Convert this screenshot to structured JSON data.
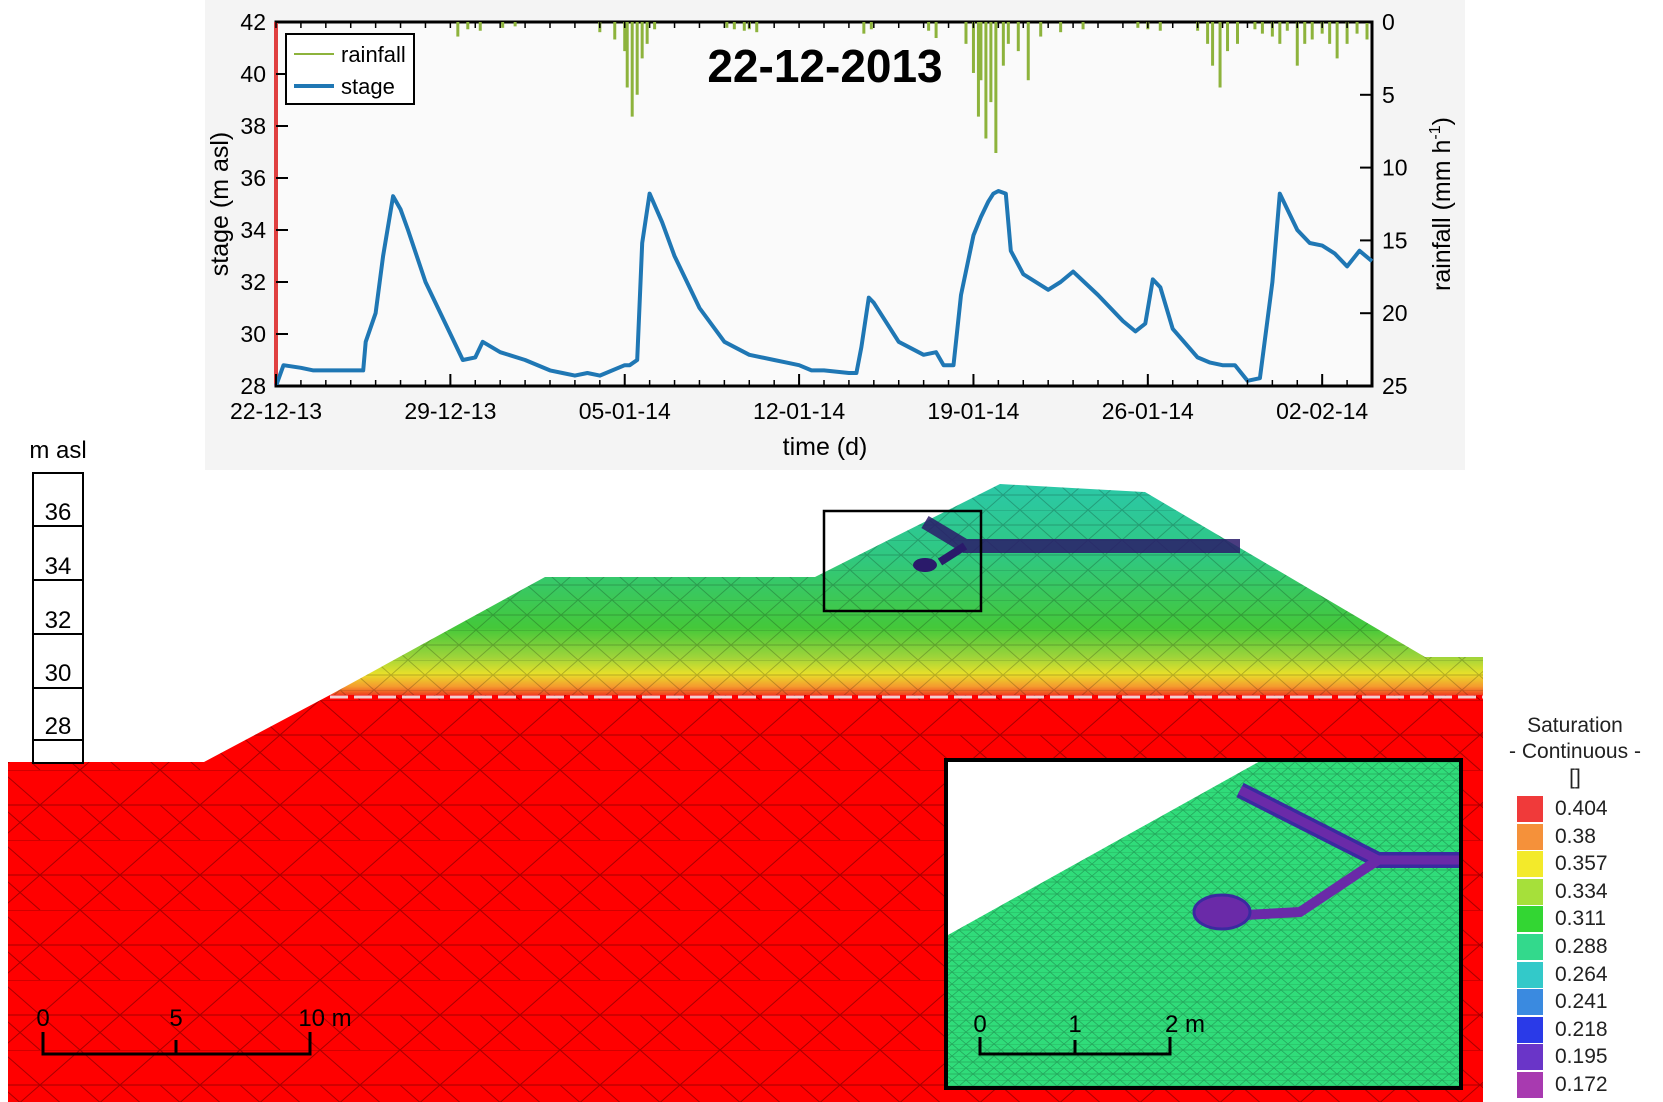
{
  "chart_data": [
    {
      "type": "line",
      "title": "22-12-2013",
      "xlabel": "time (d)",
      "ylabel": "stage (m asl)",
      "y2label": "rainfall (mm h-1)",
      "x_tick_labels": [
        "22-12-13",
        "29-12-13",
        "05-01-14",
        "12-01-14",
        "19-01-14",
        "26-01-14",
        "02-02-14"
      ],
      "x_tick_values": [
        0,
        7,
        14,
        21,
        28,
        35,
        42
      ],
      "xlim": [
        0,
        44
      ],
      "ylim": [
        28,
        42
      ],
      "y_ticks": [
        28,
        30,
        32,
        34,
        36,
        38,
        40,
        42
      ],
      "y2lim": [
        0,
        25
      ],
      "y2_ticks": [
        0,
        5,
        10,
        15,
        20,
        25
      ],
      "y2_inverted": true,
      "legend": {
        "position": "top-left",
        "entries": [
          "rainfall",
          "stage"
        ]
      },
      "colors": {
        "rainfall": "#8db33c",
        "stage": "#1f77b4"
      },
      "series": [
        {
          "name": "stage",
          "x": [
            0,
            0.3,
            1.0,
            1.5,
            2.0,
            3.0,
            3.5,
            3.6,
            4.0,
            4.3,
            4.7,
            5.0,
            5.3,
            6.0,
            7.0,
            7.5,
            8.0,
            8.3,
            9.0,
            10.0,
            11.0,
            11.5,
            12.0,
            12.5,
            13.0,
            14.0,
            14.2,
            14.5,
            14.7,
            15.0,
            15.5,
            16.0,
            17.0,
            18.0,
            19.0,
            20.0,
            20.5,
            21.0,
            21.5,
            22.0,
            23.0,
            23.3,
            23.5,
            23.8,
            24.0,
            25.0,
            26.0,
            26.5,
            26.8,
            27.2,
            27.5,
            28.0,
            28.3,
            28.6,
            28.8,
            29.0,
            29.3,
            29.5,
            30.0,
            31.0,
            31.5,
            32.0,
            33.0,
            34.0,
            34.5,
            34.9,
            35.2,
            35.5,
            36.0,
            37.0,
            37.5,
            38.0,
            38.5,
            39.0,
            39.5,
            40.0,
            40.3,
            40.6,
            41.0,
            41.5,
            42.0,
            42.5,
            43.0,
            43.5,
            44.0
          ],
          "values": [
            28.0,
            28.8,
            28.7,
            28.6,
            28.6,
            28.6,
            28.6,
            29.7,
            30.8,
            33.0,
            35.3,
            34.8,
            34.0,
            32.0,
            30.0,
            29.0,
            29.1,
            29.7,
            29.3,
            29.0,
            28.6,
            28.5,
            28.4,
            28.5,
            28.4,
            28.8,
            28.8,
            29.0,
            33.5,
            35.4,
            34.3,
            33.0,
            31.0,
            29.7,
            29.2,
            29.0,
            28.9,
            28.8,
            28.6,
            28.6,
            28.5,
            28.5,
            29.5,
            31.4,
            31.2,
            29.7,
            29.2,
            29.3,
            28.8,
            28.8,
            31.5,
            33.8,
            34.5,
            35.1,
            35.4,
            35.5,
            35.4,
            33.2,
            32.3,
            31.7,
            32.0,
            32.4,
            31.5,
            30.5,
            30.1,
            30.4,
            32.1,
            31.8,
            30.2,
            29.1,
            28.9,
            28.8,
            28.8,
            28.2,
            28.3,
            32.0,
            35.4,
            34.8,
            34.0,
            33.5,
            33.4,
            33.1,
            32.6,
            33.2,
            32.8
          ]
        },
        {
          "name": "rainfall",
          "x": [
            7.3,
            7.7,
            8.2,
            9.1,
            9.6,
            13.0,
            13.6,
            14.0,
            14.1,
            14.3,
            14.5,
            14.7,
            14.9,
            15.2,
            18.1,
            18.4,
            18.8,
            19.0,
            19.3,
            23.6,
            23.9,
            26.2,
            26.5,
            27.7,
            28.0,
            28.2,
            28.3,
            28.5,
            28.7,
            28.9,
            29.2,
            29.4,
            29.8,
            30.2,
            30.7,
            31.5,
            32.4,
            34.6,
            35.0,
            35.5,
            37.0,
            37.4,
            37.6,
            37.9,
            38.2,
            38.6,
            39.3,
            39.6,
            40.0,
            40.3,
            40.6,
            41.0,
            41.3,
            41.6,
            42.0,
            42.3,
            42.6,
            43.0,
            43.4,
            43.8
          ],
          "values": [
            1.0,
            0.5,
            0.6,
            0.4,
            0.3,
            0.7,
            1.2,
            2.0,
            4.5,
            6.5,
            5.0,
            2.5,
            1.5,
            0.5,
            0.4,
            0.5,
            0.6,
            0.5,
            0.7,
            0.8,
            0.5,
            0.6,
            1.1,
            1.5,
            3.5,
            6.5,
            4.0,
            8.0,
            5.5,
            9.0,
            3.0,
            1.5,
            2.0,
            4.0,
            1.0,
            0.7,
            0.5,
            0.4,
            0.5,
            0.6,
            0.6,
            1.5,
            3.0,
            4.5,
            2.0,
            1.5,
            0.5,
            0.8,
            1.0,
            1.5,
            0.6,
            3.0,
            1.5,
            1.2,
            0.8,
            1.5,
            2.5,
            1.5,
            0.8,
            1.2
          ]
        }
      ]
    }
  ],
  "model": {
    "elevation_axis_title": "m asl",
    "elevation_ticks": [
      "36",
      "34",
      "32",
      "30",
      "28"
    ],
    "main_scale_labels": [
      "0",
      "5",
      "10 m"
    ],
    "inset_scale_labels": [
      "0",
      "1",
      "2 m"
    ],
    "colors": {
      "substrate": "#ff0000",
      "embankment": "#20d070",
      "crest": "#2bc39a",
      "burrow": "#4a2a8c",
      "mesh": "#000000"
    }
  },
  "legend": {
    "title": "Saturation",
    "subtitle": "- Continuous -",
    "unit": "[]",
    "items": [
      {
        "value": "0.404",
        "color": "#f03a3a"
      },
      {
        "value": "0.38",
        "color": "#f5913a"
      },
      {
        "value": "0.357",
        "color": "#f3ea2a"
      },
      {
        "value": "0.334",
        "color": "#a6e03a"
      },
      {
        "value": "0.311",
        "color": "#33d633"
      },
      {
        "value": "0.288",
        "color": "#33d98c"
      },
      {
        "value": "0.264",
        "color": "#33c9c9"
      },
      {
        "value": "0.241",
        "color": "#3a8ae0"
      },
      {
        "value": "0.218",
        "color": "#2a3ae8"
      },
      {
        "value": "0.195",
        "color": "#6a35c8"
      },
      {
        "value": "0.172",
        "color": "#a83ab0"
      }
    ]
  }
}
